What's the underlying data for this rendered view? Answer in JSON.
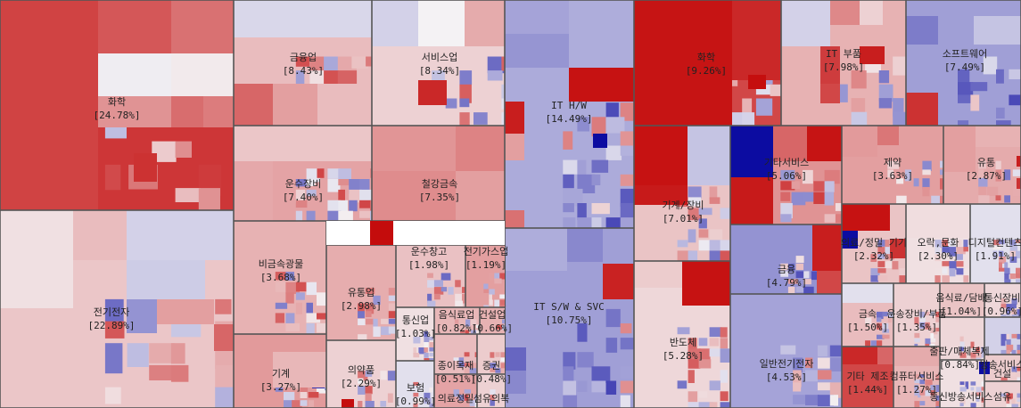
{
  "chart_data": {
    "type": "treemap",
    "color_scale": {
      "negative": "#0a0aa0",
      "neutral": "#f4f2f4",
      "positive": "#c40a0a"
    },
    "sectors": [
      {
        "name": "화학",
        "value": "[24.78%]"
      },
      {
        "name": "전기전자",
        "value": "[22.89%]"
      },
      {
        "name": "금융업",
        "value": "[8.43%]"
      },
      {
        "name": "서비스업",
        "value": "[8.34%]"
      },
      {
        "name": "운수장비",
        "value": "[7.40%]"
      },
      {
        "name": "철강금속",
        "value": "[7.35%]"
      },
      {
        "name": "비금속광물",
        "value": "[3.68%]"
      },
      {
        "name": "유통업",
        "value": "[2.98%]"
      },
      {
        "name": "운수창고",
        "value": "[1.98%]"
      },
      {
        "name": "전기가스업",
        "value": "[1.19%]"
      },
      {
        "name": "통신업",
        "value": "[1.03%]"
      },
      {
        "name": "음식료업",
        "value": "[0.82%]"
      },
      {
        "name": "건설업",
        "value": "[0.66%]"
      },
      {
        "name": "종이목재",
        "value": "[0.51%]"
      },
      {
        "name": "증권",
        "value": "[0.48%]"
      },
      {
        "name": "기계",
        "value": "[3.27%]"
      },
      {
        "name": "의약품",
        "value": "[2.29%]"
      },
      {
        "name": "보험",
        "value": "[0.99%]"
      },
      {
        "name": "의료정밀",
        "value": ""
      },
      {
        "name": "섬유의복",
        "value": ""
      },
      {
        "name": "IT H/W",
        "value": "[14.49%]"
      },
      {
        "name": "IT S/W & SVC",
        "value": "[10.75%]"
      },
      {
        "name": "화학",
        "value": "[9.26%]"
      },
      {
        "name": "IT 부품",
        "value": "[7.98%]"
      },
      {
        "name": "소프트웨어",
        "value": "[7.49%]"
      },
      {
        "name": "기타서비스",
        "value": "[5.06%]"
      },
      {
        "name": "기계/장비",
        "value": "[7.01%]"
      },
      {
        "name": "제약",
        "value": "[3.63%]"
      },
      {
        "name": "유통",
        "value": "[2.87%]"
      },
      {
        "name": "금융",
        "value": "[4.79%]"
      },
      {
        "name": "반도체",
        "value": "[5.28%]"
      },
      {
        "name": "일반전기전자",
        "value": "[4.53%]"
      },
      {
        "name": "의료/정밀 기기",
        "value": "[2.32%]"
      },
      {
        "name": "오락,문화",
        "value": "[2.30%]"
      },
      {
        "name": "디지털컨텐츠",
        "value": "[1.91%]"
      },
      {
        "name": "금속",
        "value": "[1.50%]"
      },
      {
        "name": "운송장비/부품",
        "value": "[1.35%]"
      },
      {
        "name": "음식료/담배",
        "value": "[1.04%]"
      },
      {
        "name": "통신장비",
        "value": "[0.96%]"
      },
      {
        "name": "방송서비스",
        "value": ""
      },
      {
        "name": "출판/매체복제",
        "value": "[0.84%]"
      },
      {
        "name": "기타 제조",
        "value": "[1.44%]"
      },
      {
        "name": "컴퓨터서비스",
        "value": "[1.27%]"
      },
      {
        "name": "통신방송서비스",
        "value": ""
      },
      {
        "name": "건설",
        "value": ""
      },
      {
        "name": "섬유",
        "value": ""
      }
    ]
  }
}
